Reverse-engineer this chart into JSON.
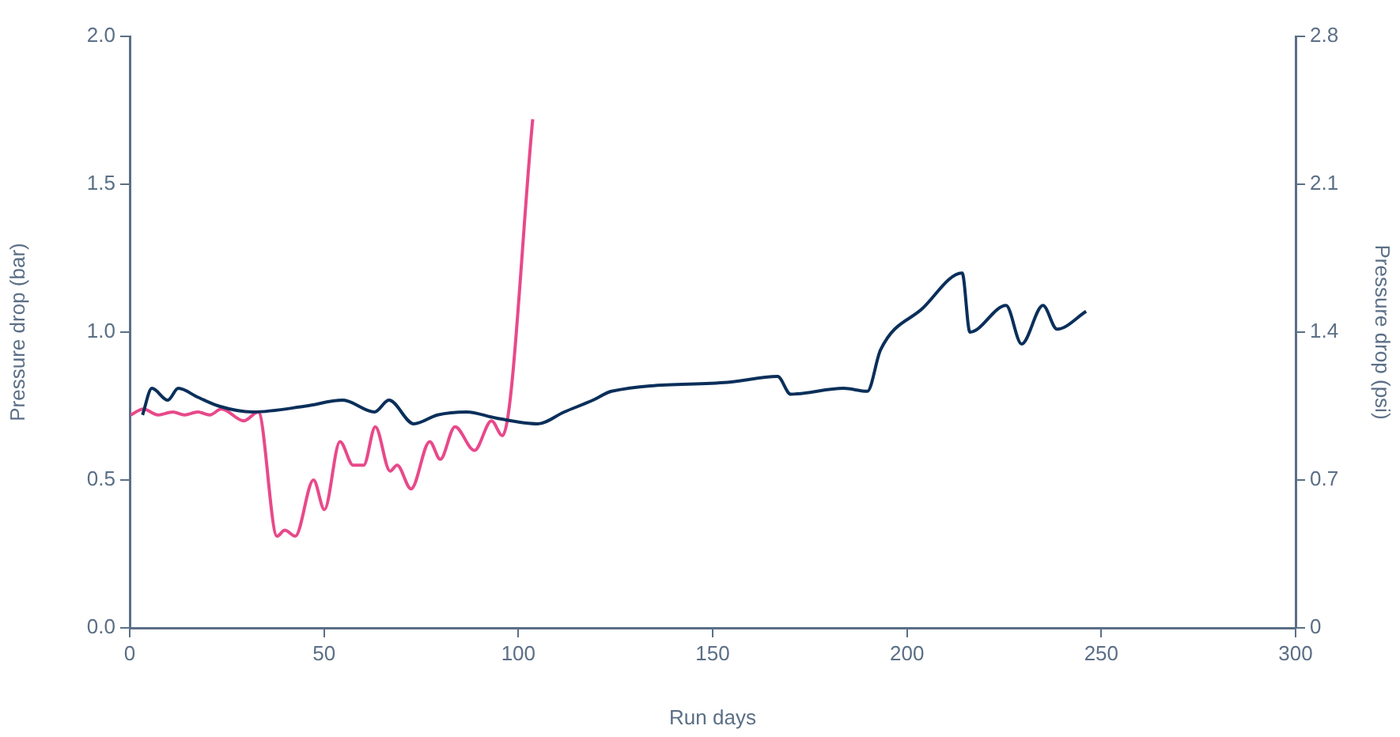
{
  "chart_data": {
    "type": "line",
    "xlabel": "Run days",
    "ylabel": "Pressure drop (bar)",
    "y2label": "Pressure drop (psi)",
    "xlim": [
      0,
      300
    ],
    "xticks": [
      0,
      50,
      100,
      150,
      200,
      250,
      300
    ],
    "ylim": [
      0,
      2.0
    ],
    "yticks": [
      {
        "value": 0,
        "label": "0.0"
      },
      {
        "value": 0.5,
        "label": "0.5"
      },
      {
        "value": 1,
        "label": "1.0"
      },
      {
        "value": 1.5,
        "label": "1.5"
      },
      {
        "value": 2,
        "label": "2.0"
      }
    ],
    "y2lim": [
      0,
      2.8
    ],
    "y2ticks": [
      0,
      0.7,
      1.4,
      2.1,
      2.8
    ],
    "marker": "none",
    "line_style": "solid",
    "series": [
      {
        "color": "#0a2f5a",
        "x": [
          3.3,
          5.7,
          9.8,
          12.5,
          17.5,
          22.9,
          31.7,
          45.3,
          54.8,
          63.0,
          66.7,
          73.1,
          79.2,
          86.7,
          94.1,
          105.0,
          111.8,
          119.2,
          124.0,
          153.8,
          166.7,
          170.1,
          183.7,
          189.8,
          193.2,
          204.0,
          214.2,
          216.2,
          225.5,
          229.5,
          235.0,
          238.6,
          246.1
        ],
        "values": [
          0.72,
          0.81,
          0.77,
          0.81,
          0.78,
          0.75,
          0.73,
          0.75,
          0.77,
          0.73,
          0.77,
          0.69,
          0.72,
          0.73,
          0.71,
          0.69,
          0.73,
          0.77,
          0.8,
          0.83,
          0.85,
          0.79,
          0.81,
          0.8,
          0.94,
          1.08,
          1.2,
          1.0,
          1.09,
          0.96,
          1.09,
          1.01,
          1.07
        ]
      },
      {
        "color": "#e8498a",
        "x": [
          0.3,
          3.5,
          7.3,
          11.1,
          14.1,
          17.5,
          20.6,
          23.6,
          29.4,
          33.1,
          37.9,
          39.9,
          42.6,
          47.3,
          50.1,
          54.1,
          57.5,
          60.2,
          63.2,
          67.0,
          68.8,
          72.4,
          77.2,
          79.9,
          83.7,
          88.7,
          93.1,
          95.9,
          103.7
        ],
        "values": [
          0.72,
          0.74,
          0.72,
          0.73,
          0.72,
          0.73,
          0.72,
          0.74,
          0.7,
          0.73,
          0.31,
          0.33,
          0.31,
          0.5,
          0.4,
          0.63,
          0.55,
          0.55,
          0.68,
          0.53,
          0.55,
          0.47,
          0.63,
          0.57,
          0.68,
          0.6,
          0.7,
          0.65,
          1.72
        ]
      }
    ]
  }
}
